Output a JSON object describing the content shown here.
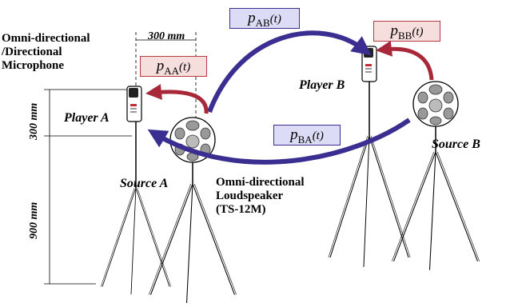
{
  "labels": {
    "mic": "Omni-directional\n/Directional\nMicrophone",
    "player_a": "Player A",
    "player_b": "Player B",
    "source_a": "Source A",
    "source_b": "Source B",
    "speaker": "Omni-directional\nLoudspeaker\n(TS-12M)",
    "dim_300_top": "300 mm",
    "dim_300_side": "300 mm",
    "dim_900": "900 mm"
  },
  "paths": {
    "aa": {
      "p": "p",
      "sub": "AA",
      "arg": "(t)"
    },
    "ab": {
      "p": "p",
      "sub": "AB",
      "arg": "(t)"
    },
    "bb": {
      "p": "p",
      "sub": "BB",
      "arg": "(t)"
    },
    "ba": {
      "p": "p",
      "sub": "BA",
      "arg": "(t)"
    }
  },
  "colors": {
    "red_arrow": "#a8283a",
    "red_box_fill": "#f6dedd",
    "red_box_border": "#b73a44",
    "blue_arrow": "#3b2e91",
    "blue_box_fill": "#dcdcf6",
    "blue_box_border": "#3b2e91"
  }
}
